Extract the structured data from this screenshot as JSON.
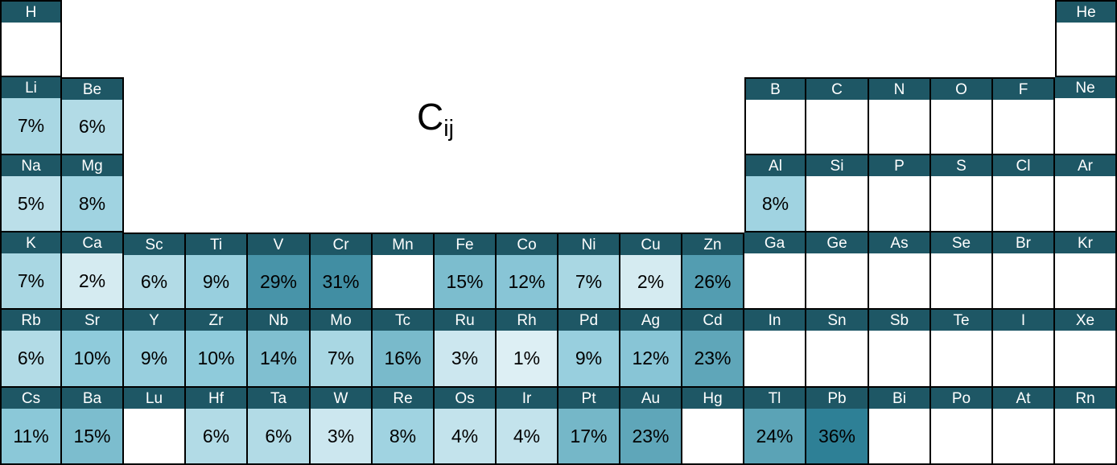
{
  "title": {
    "base": "C",
    "subscript": "ij"
  },
  "chart_data": {
    "type": "heatmap",
    "layout": "periodic-table",
    "title": "Cij",
    "unit": "%",
    "grid": {
      "columns": 18,
      "rows": 6
    },
    "colors": {
      "header_bg": "#1e5765",
      "header_text": "#ffffff",
      "cell_text": "#000000",
      "border": "#000000",
      "empty_bg": "#ffffff",
      "scale_stops": [
        {
          "value": 0,
          "color": "#e6f3f7"
        },
        {
          "value": 10,
          "color": "#8fcbdb"
        },
        {
          "value": 36,
          "color": "#2e8096"
        }
      ]
    },
    "cells": [
      {
        "symbol": "H",
        "row": 1,
        "col": 1,
        "value": null
      },
      {
        "symbol": "He",
        "row": 1,
        "col": 18,
        "value": null
      },
      {
        "symbol": "Li",
        "row": 2,
        "col": 1,
        "value": 7
      },
      {
        "symbol": "Be",
        "row": 2,
        "col": 2,
        "value": 6
      },
      {
        "symbol": "B",
        "row": 2,
        "col": 13,
        "value": null
      },
      {
        "symbol": "C",
        "row": 2,
        "col": 14,
        "value": null
      },
      {
        "symbol": "N",
        "row": 2,
        "col": 15,
        "value": null
      },
      {
        "symbol": "O",
        "row": 2,
        "col": 16,
        "value": null
      },
      {
        "symbol": "F",
        "row": 2,
        "col": 17,
        "value": null
      },
      {
        "symbol": "Ne",
        "row": 2,
        "col": 18,
        "value": null
      },
      {
        "symbol": "Na",
        "row": 3,
        "col": 1,
        "value": 5
      },
      {
        "symbol": "Mg",
        "row": 3,
        "col": 2,
        "value": 8
      },
      {
        "symbol": "Al",
        "row": 3,
        "col": 13,
        "value": 8
      },
      {
        "symbol": "Si",
        "row": 3,
        "col": 14,
        "value": null
      },
      {
        "symbol": "P",
        "row": 3,
        "col": 15,
        "value": null
      },
      {
        "symbol": "S",
        "row": 3,
        "col": 16,
        "value": null
      },
      {
        "symbol": "Cl",
        "row": 3,
        "col": 17,
        "value": null
      },
      {
        "symbol": "Ar",
        "row": 3,
        "col": 18,
        "value": null
      },
      {
        "symbol": "K",
        "row": 4,
        "col": 1,
        "value": 7
      },
      {
        "symbol": "Ca",
        "row": 4,
        "col": 2,
        "value": 2
      },
      {
        "symbol": "Sc",
        "row": 4,
        "col": 3,
        "value": 6
      },
      {
        "symbol": "Ti",
        "row": 4,
        "col": 4,
        "value": 9
      },
      {
        "symbol": "V",
        "row": 4,
        "col": 5,
        "value": 29
      },
      {
        "symbol": "Cr",
        "row": 4,
        "col": 6,
        "value": 31
      },
      {
        "symbol": "Mn",
        "row": 4,
        "col": 7,
        "value": null
      },
      {
        "symbol": "Fe",
        "row": 4,
        "col": 8,
        "value": 15
      },
      {
        "symbol": "Co",
        "row": 4,
        "col": 9,
        "value": 12
      },
      {
        "symbol": "Ni",
        "row": 4,
        "col": 10,
        "value": 7
      },
      {
        "symbol": "Cu",
        "row": 4,
        "col": 11,
        "value": 2
      },
      {
        "symbol": "Zn",
        "row": 4,
        "col": 12,
        "value": 26
      },
      {
        "symbol": "Ga",
        "row": 4,
        "col": 13,
        "value": null
      },
      {
        "symbol": "Ge",
        "row": 4,
        "col": 14,
        "value": null
      },
      {
        "symbol": "As",
        "row": 4,
        "col": 15,
        "value": null
      },
      {
        "symbol": "Se",
        "row": 4,
        "col": 16,
        "value": null
      },
      {
        "symbol": "Br",
        "row": 4,
        "col": 17,
        "value": null
      },
      {
        "symbol": "Kr",
        "row": 4,
        "col": 18,
        "value": null
      },
      {
        "symbol": "Rb",
        "row": 5,
        "col": 1,
        "value": 6
      },
      {
        "symbol": "Sr",
        "row": 5,
        "col": 2,
        "value": 10
      },
      {
        "symbol": "Y",
        "row": 5,
        "col": 3,
        "value": 9
      },
      {
        "symbol": "Zr",
        "row": 5,
        "col": 4,
        "value": 10
      },
      {
        "symbol": "Nb",
        "row": 5,
        "col": 5,
        "value": 14
      },
      {
        "symbol": "Mo",
        "row": 5,
        "col": 6,
        "value": 7
      },
      {
        "symbol": "Tc",
        "row": 5,
        "col": 7,
        "value": 16
      },
      {
        "symbol": "Ru",
        "row": 5,
        "col": 8,
        "value": 3
      },
      {
        "symbol": "Rh",
        "row": 5,
        "col": 9,
        "value": 1
      },
      {
        "symbol": "Pd",
        "row": 5,
        "col": 10,
        "value": 9
      },
      {
        "symbol": "Ag",
        "row": 5,
        "col": 11,
        "value": 12
      },
      {
        "symbol": "Cd",
        "row": 5,
        "col": 12,
        "value": 23
      },
      {
        "symbol": "In",
        "row": 5,
        "col": 13,
        "value": null
      },
      {
        "symbol": "Sn",
        "row": 5,
        "col": 14,
        "value": null
      },
      {
        "symbol": "Sb",
        "row": 5,
        "col": 15,
        "value": null
      },
      {
        "symbol": "Te",
        "row": 5,
        "col": 16,
        "value": null
      },
      {
        "symbol": "I",
        "row": 5,
        "col": 17,
        "value": null
      },
      {
        "symbol": "Xe",
        "row": 5,
        "col": 18,
        "value": null
      },
      {
        "symbol": "Cs",
        "row": 6,
        "col": 1,
        "value": 11
      },
      {
        "symbol": "Ba",
        "row": 6,
        "col": 2,
        "value": 15
      },
      {
        "symbol": "Lu",
        "row": 6,
        "col": 3,
        "value": null
      },
      {
        "symbol": "Hf",
        "row": 6,
        "col": 4,
        "value": 6
      },
      {
        "symbol": "Ta",
        "row": 6,
        "col": 5,
        "value": 6
      },
      {
        "symbol": "W",
        "row": 6,
        "col": 6,
        "value": 3
      },
      {
        "symbol": "Re",
        "row": 6,
        "col": 7,
        "value": 8
      },
      {
        "symbol": "Os",
        "row": 6,
        "col": 8,
        "value": 4
      },
      {
        "symbol": "Ir",
        "row": 6,
        "col": 9,
        "value": 4
      },
      {
        "symbol": "Pt",
        "row": 6,
        "col": 10,
        "value": 17
      },
      {
        "symbol": "Au",
        "row": 6,
        "col": 11,
        "value": 23
      },
      {
        "symbol": "Hg",
        "row": 6,
        "col": 12,
        "value": null
      },
      {
        "symbol": "Tl",
        "row": 6,
        "col": 13,
        "value": 24
      },
      {
        "symbol": "Pb",
        "row": 6,
        "col": 14,
        "value": 36
      },
      {
        "symbol": "Bi",
        "row": 6,
        "col": 15,
        "value": null
      },
      {
        "symbol": "Po",
        "row": 6,
        "col": 16,
        "value": null
      },
      {
        "symbol": "At",
        "row": 6,
        "col": 17,
        "value": null
      },
      {
        "symbol": "Rn",
        "row": 6,
        "col": 18,
        "value": null
      }
    ]
  }
}
